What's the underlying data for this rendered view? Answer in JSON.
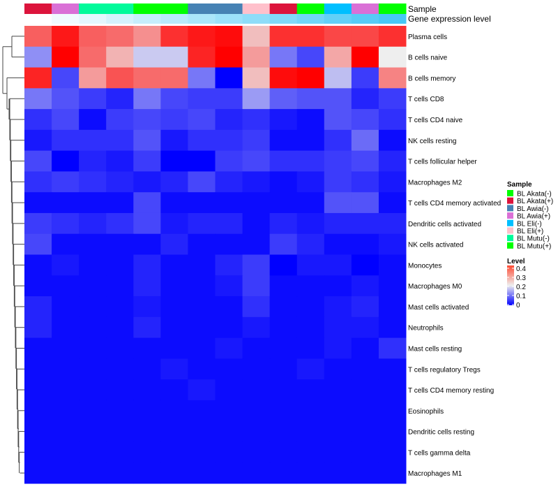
{
  "chart_data": {
    "type": "heatmap",
    "annotation_labels": {
      "sample": "Sample",
      "gene": "Gene expression level"
    },
    "columns_sample": [
      "BL Akata(+)",
      "BL Awia(+)",
      "BL Mutu(-)",
      "BL Mutu(-)",
      "BL Mutu(+)",
      "BL Mutu(+)",
      "BL Awia(-)",
      "BL Awia(-)",
      "BL Eli(+)",
      "BL Akata(+)",
      "BL Akata(-)",
      "BL Eli(-)",
      "BL Awia(+)",
      "BL Akata(-)"
    ],
    "gene_expression_level": [
      0.0,
      0.08,
      0.15,
      0.23,
      0.31,
      0.38,
      0.46,
      0.54,
      0.62,
      0.69,
      0.77,
      0.85,
      0.92,
      1.0
    ],
    "rows": [
      "Plasma cells",
      "B cells naive",
      "B cells memory",
      "T cells CD8",
      "T cells CD4 naive",
      "NK cells resting",
      "T cells follicular helper",
      "Macrophages M2",
      "T cells CD4 memory activated",
      "Dendritic cells activated",
      "NK cells activated",
      "Monocytes",
      "Macrophages M0",
      "Mast cells activated",
      "Neutrophils",
      "Mast cells resting",
      "T cells regulatory  Tregs",
      "T cells CD4 memory resting",
      "Eosinophils",
      "Dendritic cells resting",
      "T cells gamma delta",
      "Macrophages M1"
    ],
    "values": [
      [
        0.32,
        0.38,
        0.32,
        0.31,
        0.28,
        0.36,
        0.38,
        0.39,
        0.24,
        0.36,
        0.36,
        0.34,
        0.34,
        0.36
      ],
      [
        0.12,
        0.4,
        0.31,
        0.25,
        0.17,
        0.17,
        0.37,
        0.4,
        0.27,
        0.1,
        0.06,
        0.26,
        0.4,
        0.2
      ],
      [
        0.37,
        0.06,
        0.27,
        0.33,
        0.31,
        0.31,
        0.1,
        0.0,
        0.24,
        0.39,
        0.4,
        0.16,
        0.05,
        0.29
      ],
      [
        0.1,
        0.07,
        0.05,
        0.03,
        0.1,
        0.06,
        0.05,
        0.05,
        0.13,
        0.08,
        0.07,
        0.07,
        0.03,
        0.05
      ],
      [
        0.04,
        0.06,
        0.01,
        0.05,
        0.06,
        0.05,
        0.06,
        0.03,
        0.04,
        0.02,
        0.01,
        0.07,
        0.06,
        0.04
      ],
      [
        0.02,
        0.04,
        0.04,
        0.04,
        0.07,
        0.02,
        0.04,
        0.04,
        0.05,
        0.01,
        0.01,
        0.04,
        0.09,
        0.01
      ],
      [
        0.06,
        0.0,
        0.03,
        0.02,
        0.05,
        0.0,
        0.0,
        0.05,
        0.06,
        0.04,
        0.04,
        0.05,
        0.06,
        0.03
      ],
      [
        0.04,
        0.05,
        0.04,
        0.03,
        0.02,
        0.03,
        0.06,
        0.03,
        0.02,
        0.01,
        0.02,
        0.05,
        0.04,
        0.02
      ],
      [
        0.01,
        0.01,
        0.01,
        0.01,
        0.06,
        0.01,
        0.01,
        0.01,
        0.01,
        0.01,
        0.01,
        0.07,
        0.07,
        0.01
      ],
      [
        0.05,
        0.04,
        0.03,
        0.04,
        0.06,
        0.02,
        0.03,
        0.03,
        0.01,
        0.03,
        0.02,
        0.03,
        0.03,
        0.03
      ],
      [
        0.06,
        0.01,
        0.01,
        0.01,
        0.01,
        0.03,
        0.01,
        0.01,
        0.01,
        0.05,
        0.03,
        0.01,
        0.01,
        0.02
      ],
      [
        0.01,
        0.02,
        0.01,
        0.01,
        0.03,
        0.01,
        0.01,
        0.03,
        0.05,
        0.0,
        0.02,
        0.02,
        0.0,
        0.01
      ],
      [
        0.01,
        0.01,
        0.01,
        0.01,
        0.03,
        0.01,
        0.01,
        0.02,
        0.05,
        0.01,
        0.01,
        0.01,
        0.02,
        0.01
      ],
      [
        0.03,
        0.01,
        0.01,
        0.01,
        0.02,
        0.01,
        0.01,
        0.01,
        0.04,
        0.01,
        0.01,
        0.02,
        0.03,
        0.01
      ],
      [
        0.03,
        0.01,
        0.01,
        0.01,
        0.03,
        0.01,
        0.01,
        0.01,
        0.02,
        0.01,
        0.01,
        0.02,
        0.02,
        0.01
      ],
      [
        0.01,
        0.01,
        0.01,
        0.01,
        0.01,
        0.01,
        0.01,
        0.02,
        0.01,
        0.01,
        0.01,
        0.02,
        0.01,
        0.04
      ],
      [
        0.01,
        0.01,
        0.01,
        0.01,
        0.01,
        0.02,
        0.01,
        0.01,
        0.01,
        0.01,
        0.02,
        0.01,
        0.01,
        0.01
      ],
      [
        0.01,
        0.01,
        0.01,
        0.01,
        0.01,
        0.01,
        0.02,
        0.01,
        0.01,
        0.01,
        0.01,
        0.01,
        0.01,
        0.01
      ],
      [
        0.01,
        0.01,
        0.01,
        0.01,
        0.01,
        0.01,
        0.01,
        0.01,
        0.01,
        0.01,
        0.01,
        0.01,
        0.01,
        0.01
      ],
      [
        0.01,
        0.01,
        0.01,
        0.01,
        0.01,
        0.01,
        0.01,
        0.01,
        0.01,
        0.01,
        0.01,
        0.01,
        0.01,
        0.01
      ],
      [
        0.01,
        0.01,
        0.01,
        0.01,
        0.01,
        0.01,
        0.01,
        0.01,
        0.01,
        0.01,
        0.01,
        0.01,
        0.01,
        0.01
      ],
      [
        0.01,
        0.01,
        0.01,
        0.01,
        0.01,
        0.01,
        0.01,
        0.01,
        0.01,
        0.01,
        0.01,
        0.01,
        0.01,
        0.01
      ]
    ],
    "color_scale": {
      "low": "#0000FF",
      "mid": "#EEEEEE",
      "high": "#FF0000",
      "range": [
        0,
        0.4
      ],
      "mid_value": 0.2
    },
    "gene_colors": {
      "low": "#FFFFFF",
      "high": "#48C8F5"
    },
    "legend_sample": {
      "title": "Sample",
      "entries": [
        {
          "label": "BL Akata(-)",
          "color": "#00FF00"
        },
        {
          "label": "BL Akata(+)",
          "color": "#DC143C"
        },
        {
          "label": "BL Awia(-)",
          "color": "#4682B4"
        },
        {
          "label": "BL Awia(+)",
          "color": "#DA70D6"
        },
        {
          "label": "BL Eli(-)",
          "color": "#00BFFF"
        },
        {
          "label": "BL Eli(+)",
          "color": "#FFC0CB"
        },
        {
          "label": "BL Mutu(-)",
          "color": "#00FA9A"
        },
        {
          "label": "BL Mutu(+)",
          "color": "#00FF00"
        }
      ]
    },
    "legend_level": {
      "title": "Level",
      "ticks": [
        "0.4",
        "0.3",
        "0.2",
        "0.1",
        "0"
      ]
    }
  }
}
